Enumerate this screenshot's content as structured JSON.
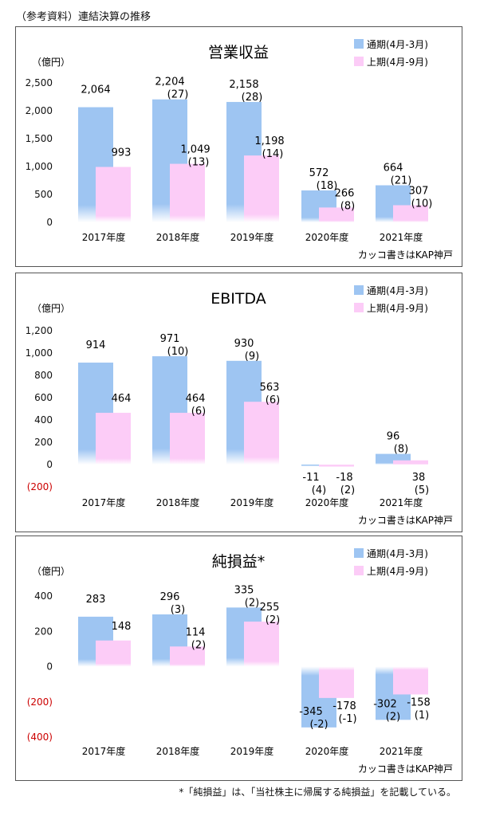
{
  "page": {
    "title": "（参考資料）連結決算の推移",
    "footnote": "*「純損益」は、「当社株主に帰属する純損益」を記載している。"
  },
  "colors": {
    "full_year": "#9ec5f2",
    "first_half": "#fcccf7",
    "negative_tick": "#cc0000"
  },
  "chart_data": [
    {
      "type": "bar",
      "title": "営業収益",
      "ylabel": "（億円）",
      "ylim": [
        0,
        2500
      ],
      "yticks": [
        "2,500",
        "2,000",
        "1,500",
        "1,000",
        "500",
        "0"
      ],
      "categories": [
        "2017年度",
        "2018年度",
        "2019年度",
        "2020年度",
        "2021年度"
      ],
      "series": [
        {
          "name": "通期(4月-3月)",
          "values": [
            2064,
            2204,
            2158,
            572,
            664
          ],
          "labels": [
            "2,064",
            "2,204",
            "2,158",
            "572",
            "664"
          ],
          "sub": [
            "",
            "(27)",
            "(28)",
            "(18)",
            "(21)"
          ]
        },
        {
          "name": "上期(4月-9月)",
          "values": [
            993,
            1049,
            1198,
            266,
            307
          ],
          "labels": [
            "993",
            "1,049",
            "1,198",
            "266",
            "307"
          ],
          "sub": [
            "",
            "(13)",
            "(14)",
            "(8)",
            "(10)"
          ]
        }
      ],
      "note": "カッコ書きはKAP神戸"
    },
    {
      "type": "bar",
      "title": "EBITDA",
      "ylabel": "（億円）",
      "ylim": [
        -200,
        1200
      ],
      "yticks": [
        "1,200",
        "1,000",
        "800",
        "600",
        "400",
        "200",
        "0",
        "(200)"
      ],
      "categories": [
        "2017年度",
        "2018年度",
        "2019年度",
        "2020年度",
        "2021年度"
      ],
      "series": [
        {
          "name": "通期(4月-3月)",
          "values": [
            914,
            971,
            930,
            -11,
            96
          ],
          "labels": [
            "914",
            "971",
            "930",
            "-11",
            "96"
          ],
          "sub": [
            "",
            "(10)",
            "(9)",
            "(4)",
            "(8)"
          ]
        },
        {
          "name": "上期(4月-9月)",
          "values": [
            464,
            464,
            563,
            -18,
            38
          ],
          "labels": [
            "464",
            "464",
            "563",
            "-18",
            "38"
          ],
          "sub": [
            "",
            "(6)",
            "(6)",
            "(2)",
            "(5)"
          ]
        }
      ],
      "note": "カッコ書きはKAP神戸"
    },
    {
      "type": "bar",
      "title": "純損益*",
      "ylabel": "（億円）",
      "ylim": [
        -400,
        400
      ],
      "yticks": [
        "400",
        "200",
        "0",
        "(200)",
        "(400)"
      ],
      "categories": [
        "2017年度",
        "2018年度",
        "2019年度",
        "2020年度",
        "2021年度"
      ],
      "series": [
        {
          "name": "通期(4月-3月)",
          "values": [
            283,
            296,
            335,
            -345,
            -302
          ],
          "labels": [
            "283",
            "296",
            "335",
            "-345",
            "-302"
          ],
          "sub": [
            "",
            "(3)",
            "(2)",
            "(-2)",
            "(2)"
          ]
        },
        {
          "name": "上期(4月-9月)",
          "values": [
            148,
            114,
            255,
            -178,
            -158
          ],
          "labels": [
            "148",
            "114",
            "255",
            "-178",
            "-158"
          ],
          "sub": [
            "",
            "(2)",
            "(2)",
            "(-1)",
            "(1)"
          ]
        }
      ],
      "note": "カッコ書きはKAP神戸"
    }
  ]
}
